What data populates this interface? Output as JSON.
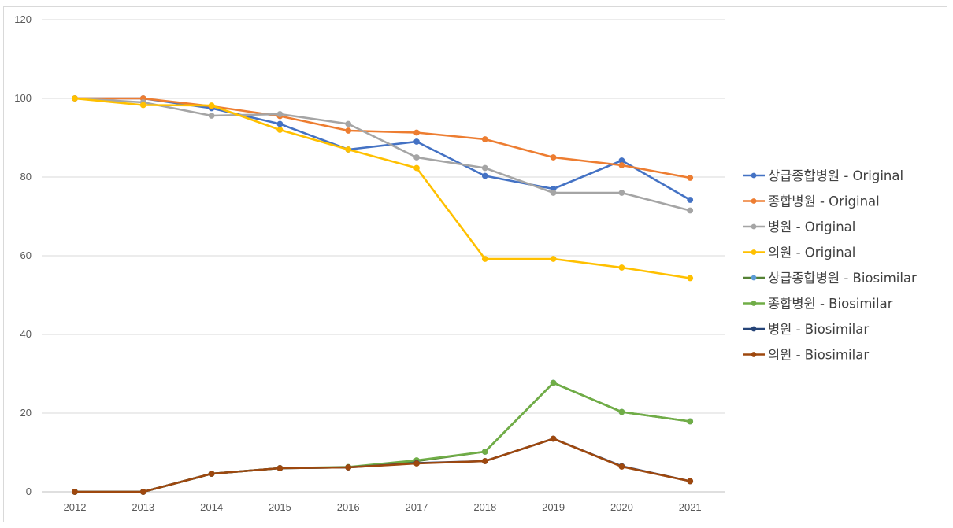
{
  "chart_data": {
    "type": "line",
    "title": "",
    "xlabel": "",
    "ylabel": "",
    "x": [
      "2012",
      "2013",
      "2014",
      "2015",
      "2016",
      "2017",
      "2018",
      "2019",
      "2020",
      "2021"
    ],
    "ylim": [
      0,
      120
    ],
    "yticks": [
      0,
      20,
      40,
      60,
      80,
      100,
      120
    ],
    "grid": true,
    "legend_position": "right",
    "series": [
      {
        "name": "상급종합병원 - Original",
        "color": "#4472c4",
        "marker_color": "#4472c4",
        "values": [
          100,
          100,
          97.5,
          93.5,
          87,
          89,
          80.3,
          77,
          84.2,
          74.2
        ]
      },
      {
        "name": "종합병원 - Original",
        "color": "#ed7d31",
        "marker_color": "#ed7d31",
        "values": [
          100,
          100,
          98,
          95.5,
          91.8,
          91.3,
          89.6,
          85,
          83,
          79.8
        ]
      },
      {
        "name": "병원 - Original",
        "color": "#a5a5a5",
        "marker_color": "#a5a5a5",
        "values": [
          100,
          99,
          95.6,
          96,
          93.5,
          85,
          82.3,
          76,
          76,
          71.5
        ]
      },
      {
        "name": "의원 - Original",
        "color": "#ffc000",
        "marker_color": "#ffc000",
        "values": [
          100,
          98.3,
          98.2,
          92,
          87,
          82.3,
          59.2,
          59.2,
          57,
          54.3
        ]
      },
      {
        "name": "상급종합병원 - Biosimilar",
        "color": "#548235",
        "marker_color": "#5b9bd5",
        "values": [
          0,
          0,
          4.6,
          6,
          6.2,
          7.8,
          10.2,
          27.7,
          20.3,
          17.9
        ]
      },
      {
        "name": "종합병원 - Biosimilar",
        "color": "#70ad47",
        "marker_color": "#70ad47",
        "values": [
          0,
          0,
          4.6,
          6,
          6.3,
          8,
          10.2,
          27.7,
          20.3,
          17.9
        ]
      },
      {
        "name": "병원 - Biosimilar",
        "color": "#264478",
        "marker_color": "#264478",
        "values": [
          0,
          0,
          4.6,
          6,
          6.2,
          7.3,
          7.8,
          13.5,
          6.5,
          2.7
        ]
      },
      {
        "name": "의원 - Biosimilar",
        "color": "#9e480e",
        "marker_color": "#9e480e",
        "values": [
          0,
          0,
          4.6,
          6,
          6.2,
          7.2,
          7.8,
          13.5,
          6.4,
          2.7
        ]
      }
    ]
  }
}
